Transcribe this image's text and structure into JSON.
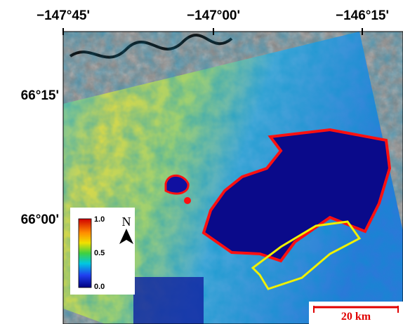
{
  "map": {
    "lon_labels": [
      "−147°45'",
      "−147°00'",
      "−146°15'"
    ],
    "lat_labels": [
      "66°15'",
      "66°00'"
    ],
    "colorbar": {
      "labels": [
        "1.0",
        "0.5",
        "0.0"
      ]
    },
    "north_label": "N",
    "scale_label": "20 km"
  }
}
